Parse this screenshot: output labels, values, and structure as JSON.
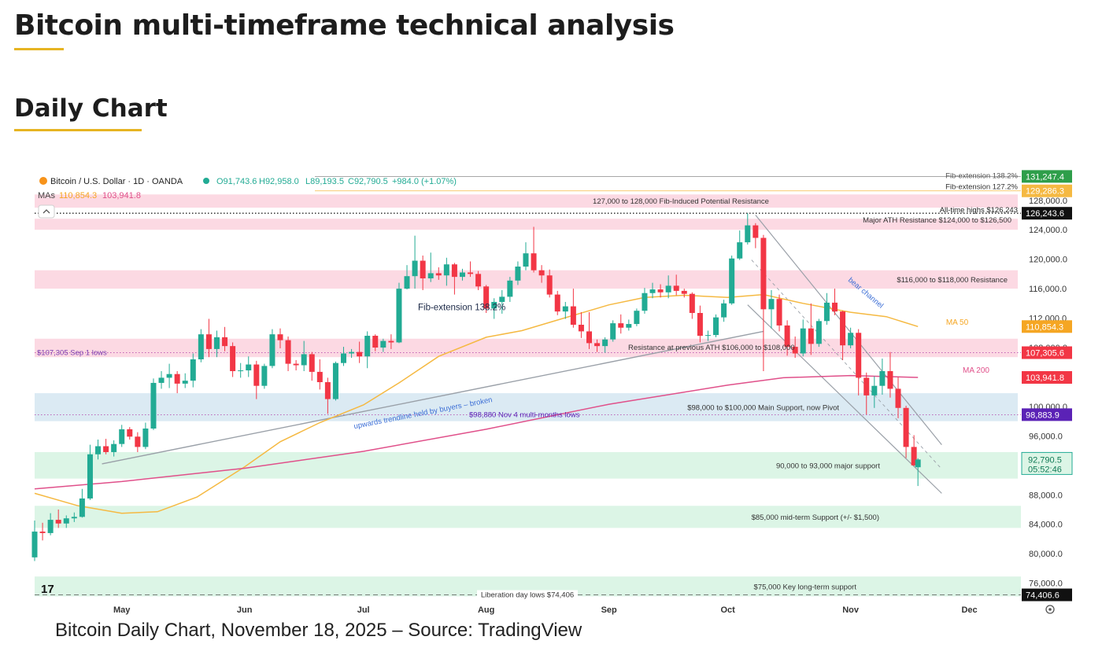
{
  "page": {
    "title": "Bitcoin multi-timeframe technical analysis",
    "section": "Daily Chart",
    "caption": "Bitcoin Daily Chart, November 18, 2025 – Source: TradingView"
  },
  "colors": {
    "up": "#22ab94",
    "down": "#f23645",
    "ma50": "#f5b942",
    "ma200": "#e0508a",
    "resistance_zone": "#fcd9e3",
    "support_zone": "#dcf5e6",
    "pivot_zone": "#dbeaf3",
    "trendline": "#9aa0a8"
  },
  "chart_data": {
    "type": "candlestick",
    "symbol_line": {
      "symbol": "Bitcoin / U.S. Dollar · 1D · OANDA",
      "o": "O91,743.6",
      "h": "H92,958.0",
      "l": "L89,193.5",
      "c": "C92,790.5",
      "chg": "+984.0 (+1.07%)"
    },
    "ma_line": {
      "label": "MAs",
      "ma50": "110,854.3",
      "ma200": "103,941.8"
    },
    "x_range": [
      "2025-04-09",
      "2025-12-14"
    ],
    "ylim": [
      73500,
      131500
    ],
    "x_ticks": [
      {
        "label": "May",
        "date": "2025-05-01"
      },
      {
        "label": "Jun",
        "date": "2025-06-01"
      },
      {
        "label": "Jul",
        "date": "2025-07-01"
      },
      {
        "label": "Aug",
        "date": "2025-08-01"
      },
      {
        "label": "Sep",
        "date": "2025-09-01"
      },
      {
        "label": "Oct",
        "date": "2025-10-01"
      },
      {
        "label": "Nov",
        "date": "2025-11-01"
      },
      {
        "label": "Dec",
        "date": "2025-12-01"
      }
    ],
    "y_ticks": [
      "76,000.0",
      "80,000.0",
      "84,000.0",
      "88,000.0",
      "92,000.0",
      "96,000.0",
      "100,000.0",
      "104,000.0",
      "108,000.0",
      "112,000.0",
      "116,000.0",
      "120,000.0",
      "124,000.0",
      "128,000.0"
    ],
    "price_tags": [
      {
        "text": "131,247.4",
        "value": 131247.4,
        "color": "#2e9e4a"
      },
      {
        "text": "129,286.3",
        "value": 129286.3,
        "color": "#f5b942"
      },
      {
        "text": "126,243.6",
        "value": 126243.6,
        "color": "#111111"
      },
      {
        "text": "110,854.3",
        "value": 110854.3,
        "color": "#f5a623"
      },
      {
        "text": "107,305.6",
        "value": 107305.6,
        "color": "#f23645"
      },
      {
        "text": "103,941.8",
        "value": 103941.8,
        "color": "#f23645"
      },
      {
        "text": "98,883.9",
        "value": 98883.9,
        "color": "#5b22b6"
      },
      {
        "text": "74,406.6",
        "value": 74406.6,
        "color": "#111111"
      }
    ],
    "current_price": {
      "price": "92,790.5",
      "countdown": "05:52:46",
      "value": 92790.5
    },
    "zones": [
      {
        "kind": "resistance",
        "low": 127000,
        "high": 128800,
        "label": "127,000 to 128,000 Fib-Induced Potential Resistance",
        "label_pos": "center"
      },
      {
        "kind": "resistance",
        "low": 124000,
        "high": 125500,
        "label": "Major ATH Resistance $124,000 to $126,500",
        "label_pos": "right"
      },
      {
        "kind": "resistance",
        "low": 116000,
        "high": 118500,
        "label": "$116,000 to $118,000 Resistance",
        "label_pos": "right"
      },
      {
        "kind": "resistance",
        "low": 106700,
        "high": 109200,
        "label": "Resistance at previous ATH $106,000 to $108,000",
        "label_pos": "mid"
      },
      {
        "kind": "pivot",
        "low": 98000,
        "high": 101800,
        "label": "$98,000 to $100,000 Main Support, now Pivot",
        "label_pos": "right"
      },
      {
        "kind": "support",
        "low": 90200,
        "high": 93800,
        "label": "90,000 to 93,000 major support",
        "label_pos": "right"
      },
      {
        "kind": "support",
        "low": 83500,
        "high": 86500,
        "label": "$85,000 mid-term Support (+/- $1,500)",
        "label_pos": "right"
      },
      {
        "kind": "support",
        "low": 74200,
        "high": 76900,
        "label": "$75,000 Key long-term support",
        "label_pos": "right"
      }
    ],
    "level_lines": [
      {
        "value": 126243,
        "label": "All-time highs $126,243",
        "style": "dotted",
        "color": "#222222"
      },
      {
        "value": 131247,
        "label": "Fib-extension 138.2%",
        "style": "solid",
        "color": "#8a8a8a"
      },
      {
        "value": 129286,
        "label": "Fib-extension 127.2%",
        "style": "solid",
        "color": "#f5b942"
      },
      {
        "value": 107305,
        "label": "$107,305 Sep 1 lows",
        "style": "dotted",
        "color": "#b03aa8"
      },
      {
        "value": 98880,
        "label": "$98,880 Nov 4 multi-months lows",
        "style": "dotted",
        "color": "#b03aa8"
      },
      {
        "value": 74406,
        "label": "Liberation day lows $74,406",
        "style": "dashed",
        "color": "#555555"
      }
    ],
    "annotations": {
      "fib_ext": "Fib-extension 138.2%",
      "trendline": "upwards trendline held by buyers – broken",
      "bear_channel": "bear channel",
      "ma50_label": "MA 50",
      "ma200_label": "MA 200"
    },
    "trendline": {
      "x1": "2025-04-26",
      "y1": 92200,
      "x2": "2025-10-10",
      "y2": 110200
    },
    "bear_channel": {
      "upper": {
        "x1": "2025-10-08",
        "y1": 126000,
        "x2": "2025-11-24",
        "y2": 94800
      },
      "lower": {
        "x1": "2025-10-06",
        "y1": 113800,
        "x2": "2025-11-24",
        "y2": 88200
      },
      "mid": {
        "x1": "2025-10-07",
        "y1": 119900,
        "x2": "2025-11-24",
        "y2": 91500
      }
    },
    "series": [
      {
        "name": "MA 50",
        "points": [
          [
            "2025-04-09",
            88200
          ],
          [
            "2025-04-20",
            86500
          ],
          [
            "2025-05-01",
            85500
          ],
          [
            "2025-05-10",
            85700
          ],
          [
            "2025-05-20",
            87700
          ],
          [
            "2025-06-01",
            91800
          ],
          [
            "2025-06-10",
            95200
          ],
          [
            "2025-06-20",
            97800
          ],
          [
            "2025-07-01",
            100200
          ],
          [
            "2025-07-10",
            103200
          ],
          [
            "2025-07-20",
            106800
          ],
          [
            "2025-08-01",
            109400
          ],
          [
            "2025-08-10",
            110300
          ],
          [
            "2025-08-20",
            111900
          ],
          [
            "2025-09-01",
            113800
          ],
          [
            "2025-09-10",
            114800
          ],
          [
            "2025-09-20",
            115100
          ],
          [
            "2025-10-01",
            114800
          ],
          [
            "2025-10-10",
            115200
          ],
          [
            "2025-10-20",
            114000
          ],
          [
            "2025-11-01",
            112800
          ],
          [
            "2025-11-10",
            112200
          ],
          [
            "2025-11-18",
            110854
          ]
        ]
      },
      {
        "name": "MA 200",
        "points": [
          [
            "2025-04-09",
            88800
          ],
          [
            "2025-05-01",
            89800
          ],
          [
            "2025-06-01",
            91600
          ],
          [
            "2025-07-01",
            93900
          ],
          [
            "2025-08-01",
            96900
          ],
          [
            "2025-09-01",
            100300
          ],
          [
            "2025-10-01",
            102900
          ],
          [
            "2025-10-15",
            103900
          ],
          [
            "2025-11-01",
            104200
          ],
          [
            "2025-11-18",
            103942
          ]
        ]
      }
    ],
    "candles": [
      [
        "2025-04-09",
        79500,
        84500,
        79000,
        83000
      ],
      [
        "2025-04-11",
        83000,
        84200,
        81800,
        82800
      ],
      [
        "2025-04-13",
        82800,
        85500,
        82500,
        84600
      ],
      [
        "2025-04-15",
        84600,
        86000,
        83500,
        84100
      ],
      [
        "2025-04-17",
        84100,
        85200,
        83500,
        84800
      ],
      [
        "2025-04-19",
        84800,
        85600,
        84300,
        85000
      ],
      [
        "2025-04-21",
        85000,
        88800,
        84900,
        87500
      ],
      [
        "2025-04-23",
        87500,
        94800,
        87300,
        93500
      ],
      [
        "2025-04-25",
        93500,
        95500,
        92800,
        94600
      ],
      [
        "2025-04-27",
        94600,
        95600,
        93500,
        93800
      ],
      [
        "2025-04-29",
        93800,
        95400,
        93200,
        94900
      ],
      [
        "2025-05-01",
        94900,
        97500,
        94500,
        96900
      ],
      [
        "2025-05-03",
        96900,
        97200,
        95500,
        95900
      ],
      [
        "2025-05-05",
        95900,
        96500,
        93800,
        94500
      ],
      [
        "2025-05-07",
        94500,
        97800,
        94200,
        97000
      ],
      [
        "2025-05-09",
        97000,
        103800,
        96800,
        103200
      ],
      [
        "2025-05-11",
        103200,
        104800,
        102400,
        103900
      ],
      [
        "2025-05-13",
        103900,
        105800,
        102500,
        104400
      ],
      [
        "2025-05-15",
        104400,
        104800,
        101800,
        103100
      ],
      [
        "2025-05-17",
        103100,
        104500,
        102500,
        103500
      ],
      [
        "2025-05-19",
        103500,
        107200,
        102600,
        106400
      ],
      [
        "2025-05-21",
        106400,
        110500,
        106000,
        109800
      ],
      [
        "2025-05-23",
        109800,
        111900,
        106700,
        107800
      ],
      [
        "2025-05-25",
        107800,
        110300,
        106700,
        109400
      ],
      [
        "2025-05-27",
        109400,
        110800,
        107500,
        108200
      ],
      [
        "2025-05-29",
        108200,
        108700,
        104000,
        104800
      ],
      [
        "2025-05-31",
        104800,
        105900,
        103900,
        104900
      ],
      [
        "2025-06-02",
        104900,
        106800,
        104000,
        105700
      ],
      [
        "2025-06-04",
        105700,
        106200,
        101000,
        102800
      ],
      [
        "2025-06-06",
        102800,
        105800,
        102400,
        105500
      ],
      [
        "2025-06-08",
        105500,
        110500,
        105200,
        109800
      ],
      [
        "2025-06-10",
        109800,
        110600,
        107900,
        109000
      ],
      [
        "2025-06-12",
        109000,
        109500,
        104800,
        105800
      ],
      [
        "2025-06-14",
        105800,
        106300,
        104900,
        105600
      ],
      [
        "2025-06-16",
        105600,
        108900,
        104800,
        107100
      ],
      [
        "2025-06-18",
        107100,
        107400,
        103500,
        104700
      ],
      [
        "2025-06-20",
        104700,
        106400,
        102300,
        103300
      ],
      [
        "2025-06-22",
        103300,
        103900,
        99000,
        101000
      ],
      [
        "2025-06-24",
        101000,
        106100,
        100800,
        105900
      ],
      [
        "2025-06-26",
        105900,
        108100,
        105500,
        107200
      ],
      [
        "2025-06-28",
        107200,
        107800,
        106600,
        107400
      ],
      [
        "2025-06-30",
        107400,
        108800,
        105900,
        106800
      ],
      [
        "2025-07-02",
        106800,
        110200,
        105200,
        109600
      ],
      [
        "2025-07-04",
        109600,
        109800,
        107500,
        108000
      ],
      [
        "2025-07-06",
        108000,
        109200,
        107400,
        108900
      ],
      [
        "2025-07-08",
        108900,
        109800,
        107800,
        108700
      ],
      [
        "2025-07-10",
        108700,
        116800,
        108600,
        116000
      ],
      [
        "2025-07-12",
        116000,
        119200,
        115900,
        117700
      ],
      [
        "2025-07-14",
        117700,
        123200,
        116000,
        119800
      ],
      [
        "2025-07-16",
        119800,
        120500,
        115800,
        117400
      ],
      [
        "2025-07-18",
        117400,
        120900,
        116900,
        118100
      ],
      [
        "2025-07-20",
        118100,
        118900,
        117200,
        117800
      ],
      [
        "2025-07-22",
        117800,
        120200,
        116400,
        119300
      ],
      [
        "2025-07-24",
        119300,
        119500,
        115200,
        117600
      ],
      [
        "2025-07-26",
        117600,
        118700,
        117100,
        118200
      ],
      [
        "2025-07-28",
        118200,
        119700,
        117600,
        118000
      ],
      [
        "2025-07-30",
        118000,
        118400,
        115800,
        116300
      ],
      [
        "2025-08-01",
        116300,
        116500,
        112700,
        113300
      ],
      [
        "2025-08-03",
        113300,
        114700,
        111900,
        114200
      ],
      [
        "2025-08-05",
        114200,
        115800,
        112600,
        114900
      ],
      [
        "2025-08-07",
        114900,
        117600,
        114200,
        117100
      ],
      [
        "2025-08-09",
        117100,
        119700,
        116500,
        119000
      ],
      [
        "2025-08-11",
        119000,
        122300,
        118500,
        120800
      ],
      [
        "2025-08-13",
        120800,
        124400,
        118200,
        118500
      ],
      [
        "2025-08-15",
        118500,
        119200,
        116800,
        117800
      ],
      [
        "2025-08-17",
        117800,
        118600,
        114800,
        115200
      ],
      [
        "2025-08-19",
        115200,
        115700,
        112400,
        112900
      ],
      [
        "2025-08-21",
        112900,
        114200,
        111900,
        113600
      ],
      [
        "2025-08-23",
        113600,
        116000,
        110700,
        111100
      ],
      [
        "2025-08-25",
        111100,
        112800,
        109300,
        110200
      ],
      [
        "2025-08-27",
        110200,
        112800,
        107800,
        108600
      ],
      [
        "2025-08-29",
        108600,
        109100,
        107400,
        108200
      ],
      [
        "2025-08-31",
        108200,
        109400,
        107300,
        109100
      ],
      [
        "2025-09-02",
        109100,
        111700,
        108800,
        111300
      ],
      [
        "2025-09-04",
        111300,
        112500,
        109900,
        110700
      ],
      [
        "2025-09-06",
        110700,
        111800,
        110300,
        111200
      ],
      [
        "2025-09-08",
        111200,
        113300,
        110900,
        113000
      ],
      [
        "2025-09-10",
        113000,
        116100,
        112600,
        115400
      ],
      [
        "2025-09-12",
        115400,
        116800,
        114700,
        115900
      ],
      [
        "2025-09-14",
        115900,
        116600,
        114800,
        115500
      ],
      [
        "2025-09-16",
        115500,
        117800,
        114700,
        116400
      ],
      [
        "2025-09-18",
        116400,
        117900,
        115100,
        115700
      ],
      [
        "2025-09-20",
        115700,
        116000,
        114800,
        115300
      ],
      [
        "2025-09-22",
        115300,
        115500,
        111900,
        112700
      ],
      [
        "2025-09-24",
        112700,
        113700,
        108700,
        109600
      ],
      [
        "2025-09-26",
        109600,
        110300,
        108900,
        109700
      ],
      [
        "2025-09-28",
        109700,
        112500,
        109400,
        112100
      ],
      [
        "2025-09-30",
        112100,
        114500,
        111500,
        114000
      ],
      [
        "2025-10-02",
        114000,
        120500,
        113800,
        120100
      ],
      [
        "2025-10-04",
        120100,
        123900,
        119900,
        122300
      ],
      [
        "2025-10-06",
        122300,
        126243,
        122000,
        124600
      ],
      [
        "2025-10-08",
        124600,
        124900,
        121500,
        122900
      ],
      [
        "2025-10-10",
        122900,
        123300,
        104800,
        113200
      ],
      [
        "2025-10-12",
        113200,
        115800,
        110600,
        114600
      ],
      [
        "2025-10-14",
        114600,
        115200,
        110200,
        111000
      ],
      [
        "2025-10-16",
        111000,
        111700,
        106900,
        108100
      ],
      [
        "2025-10-18",
        108100,
        109500,
        106600,
        107200
      ],
      [
        "2025-10-20",
        107200,
        111800,
        106800,
        110600
      ],
      [
        "2025-10-22",
        110600,
        114000,
        107000,
        108500
      ],
      [
        "2025-10-24",
        108500,
        111900,
        108100,
        111600
      ],
      [
        "2025-10-26",
        111600,
        115400,
        111100,
        114100
      ],
      [
        "2025-10-28",
        114100,
        116000,
        112400,
        112900
      ],
      [
        "2025-10-30",
        112900,
        113000,
        106300,
        108300
      ],
      [
        "2025-11-01",
        108300,
        110700,
        107900,
        110000
      ],
      [
        "2025-11-03",
        110000,
        110500,
        101500,
        103900
      ],
      [
        "2025-11-05",
        103900,
        104600,
        98900,
        101500
      ],
      [
        "2025-11-07",
        101500,
        104100,
        99800,
        102800
      ],
      [
        "2025-11-09",
        102800,
        106500,
        101600,
        104800
      ],
      [
        "2025-11-11",
        104800,
        107400,
        101200,
        102400
      ],
      [
        "2025-11-13",
        102400,
        104000,
        98400,
        99800
      ],
      [
        "2025-11-15",
        99800,
        100100,
        93000,
        94500
      ],
      [
        "2025-11-17",
        94500,
        96100,
        91900,
        92000
      ],
      [
        "2025-11-18",
        91743.6,
        92958,
        89193.5,
        92790.5
      ]
    ]
  }
}
